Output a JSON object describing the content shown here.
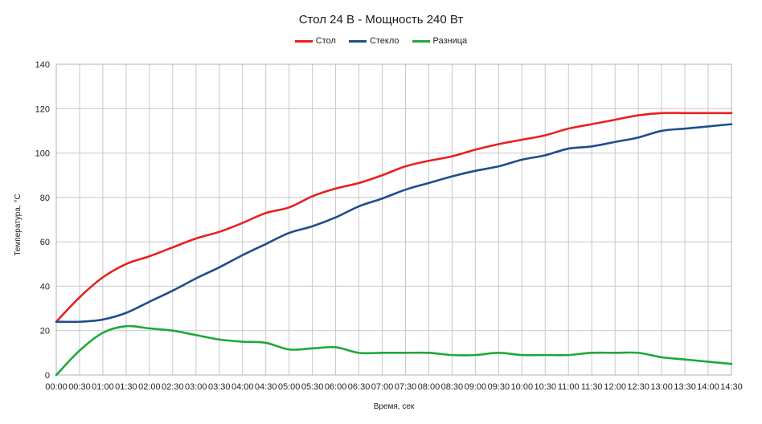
{
  "chart_data": {
    "type": "line",
    "title": "Стол 24 В - Мощность 240 Вт",
    "xlabel": "Время, сек",
    "ylabel": "Температура, °C",
    "ylim": [
      0,
      140
    ],
    "yticks": [
      0,
      20,
      40,
      60,
      80,
      100,
      120,
      140
    ],
    "grid": true,
    "legend": "top-center",
    "categories": [
      "00:00",
      "00:30",
      "01:00",
      "01:30",
      "02:00",
      "02:30",
      "03:00",
      "03:30",
      "04:00",
      "04:30",
      "05:00",
      "05:30",
      "06:00",
      "06:30",
      "07:00",
      "07:30",
      "08:00",
      "08:30",
      "09:00",
      "09:30",
      "10:00",
      "10:30",
      "11:00",
      "11:30",
      "12:00",
      "12:30",
      "13:00",
      "13:30",
      "14:00",
      "14:30"
    ],
    "series": [
      {
        "name": "Стол",
        "color": "#e8211f",
        "values": [
          24,
          35,
          44,
          50,
          53.5,
          57.5,
          61.5,
          64.5,
          68.5,
          73,
          75.5,
          80.5,
          84,
          86.5,
          90,
          94,
          96.5,
          98.5,
          101.5,
          104,
          106,
          108,
          111,
          113,
          115,
          117,
          118,
          118,
          118,
          118
        ]
      },
      {
        "name": "Стекло",
        "color": "#1f4e8a",
        "values": [
          24,
          24,
          25,
          28,
          33,
          38,
          43.5,
          48.5,
          54,
          59,
          64,
          67,
          71,
          76,
          79.5,
          83.5,
          86.5,
          89.5,
          92,
          94,
          97,
          99,
          102,
          103,
          105,
          107,
          110,
          111,
          112,
          113
        ]
      },
      {
        "name": "Разница",
        "color": "#1fa83a",
        "values": [
          0,
          11,
          19,
          22,
          21,
          20,
          18,
          16,
          15,
          14.5,
          11.5,
          12,
          12.5,
          10,
          10,
          10,
          10,
          9,
          9,
          10,
          9,
          9,
          9,
          10,
          10,
          10,
          8,
          7,
          6,
          5
        ]
      }
    ]
  }
}
